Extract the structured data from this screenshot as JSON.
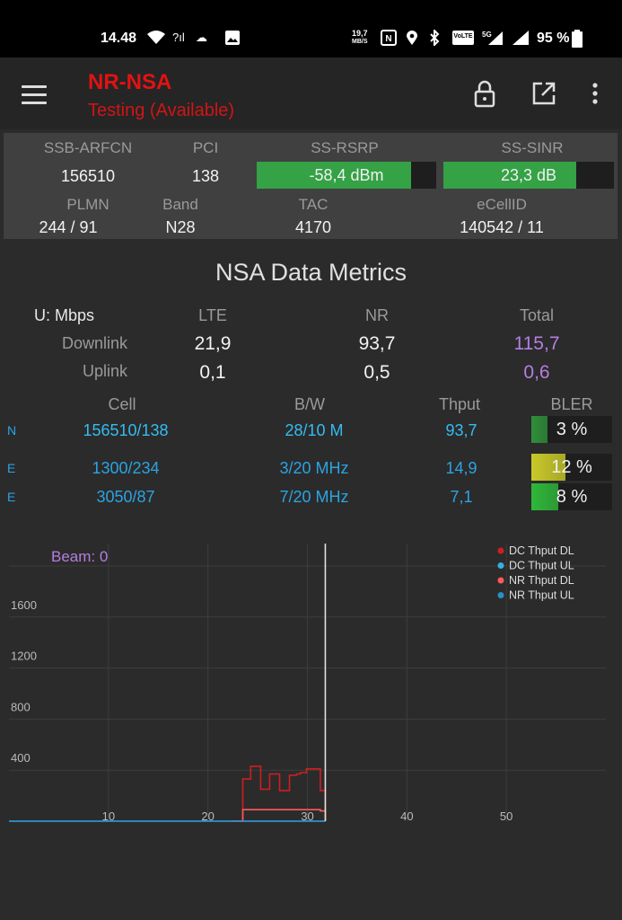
{
  "status_bar": {
    "time": "14.48",
    "speed_value": "19,7",
    "speed_unit": "MB/S",
    "battery": "95 %",
    "icons": [
      "wifi-icon",
      "wifi-calling-icon",
      "cast-icon",
      "image-icon",
      "nfc-icon",
      "location-icon",
      "bluetooth-icon",
      "volte-icon",
      "5g-signal-icon",
      "signal-icon",
      "battery-icon"
    ]
  },
  "appbar": {
    "title": "NR-NSA",
    "subtitle": "Testing (Available)",
    "title_color": "#e21212",
    "icons": [
      "menu-icon",
      "lock-icon",
      "open-external-icon",
      "more-vert-icon"
    ]
  },
  "cell_info": {
    "ssb_arfcn_label": "SSB-ARFCN",
    "ssb_arfcn": "156510",
    "pci_label": "PCI",
    "pci": "138",
    "ss_rsrp_label": "SS-RSRP",
    "ss_rsrp": "-58,4 dBm",
    "ss_rsrp_fill": 0.86,
    "ss_sinr_label": "SS-SINR",
    "ss_sinr": "23,3 dB",
    "ss_sinr_fill": 0.78,
    "plmn_label": "PLMN",
    "plmn": "244 / 91",
    "band_label": "Band",
    "band": "N28",
    "tac_label": "TAC",
    "tac": "4170",
    "ecellid_label": "eCellID",
    "ecellid": "140542 / 11",
    "bar_color": "#34a245"
  },
  "metrics": {
    "title": "NSA Data Metrics",
    "unit_label": "U: Mbps",
    "col_lte": "LTE",
    "col_nr": "NR",
    "col_total": "Total",
    "downlink_label": "Downlink",
    "uplink_label": "Uplink",
    "dl_lte": "21,9",
    "dl_nr": "93,7",
    "dl_total": "115,7",
    "ul_lte": "0,1",
    "ul_nr": "0,5",
    "ul_total": "0,6",
    "total_color": "#b57ee0"
  },
  "cells": {
    "col_cell": "Cell",
    "col_bw": "B/W",
    "col_thput": "Thput",
    "col_bler": "BLER",
    "rows": [
      {
        "tag": "N",
        "cell": "156510/138",
        "bw": "28/10 M",
        "thput": "93,7",
        "bler": "3 %",
        "bler_fraction": 0.2,
        "bler_color": "#2f8f3a"
      },
      {
        "tag": "E",
        "cell": "1300/234",
        "bw": "3/20 MHz",
        "thput": "14,9",
        "bler": "12 %",
        "bler_fraction": 0.42,
        "bler_color": "#c9c92a"
      },
      {
        "tag": "E",
        "cell": "3050/87",
        "bw": "7/20 MHz",
        "thput": "7,1",
        "bler": "8 %",
        "bler_fraction": 0.33,
        "bler_color": "#2fb83a"
      }
    ]
  },
  "chart_data": {
    "type": "line",
    "annotation": "Beam: 0",
    "annotation_color": "#b57ee0",
    "x_ticks": [
      10,
      20,
      30,
      40,
      50
    ],
    "y_ticks": [
      400,
      800,
      1200,
      1600
    ],
    "xlim": [
      0,
      60
    ],
    "ylim": [
      0,
      2000
    ],
    "cursor_x": 31.8,
    "grid": true,
    "legend_position": "top-right",
    "series": [
      {
        "name": "DC Thput DL",
        "color": "#d01e1e",
        "step": true,
        "x": [
          22.5,
          23.5,
          24.3,
          25.3,
          26.2,
          27.2,
          28.2,
          28.9,
          29.3,
          29.9,
          31.3,
          31.8
        ],
        "y": [
          0,
          330,
          430,
          250,
          370,
          240,
          360,
          370,
          380,
          410,
          240,
          60
        ]
      },
      {
        "name": "DC Thput UL",
        "color": "#38b0e0",
        "step": false,
        "x": [
          0,
          31.8
        ],
        "y": [
          0,
          0
        ]
      },
      {
        "name": "NR Thput DL",
        "color": "#ff5a5a",
        "step": true,
        "x": [
          22.5,
          23.5,
          31.3,
          31.8
        ],
        "y": [
          0,
          90,
          80,
          0
        ]
      },
      {
        "name": "NR Thput UL",
        "color": "#2a8fc8",
        "step": false,
        "x": [
          0,
          31.8
        ],
        "y": [
          0,
          0
        ]
      }
    ]
  }
}
